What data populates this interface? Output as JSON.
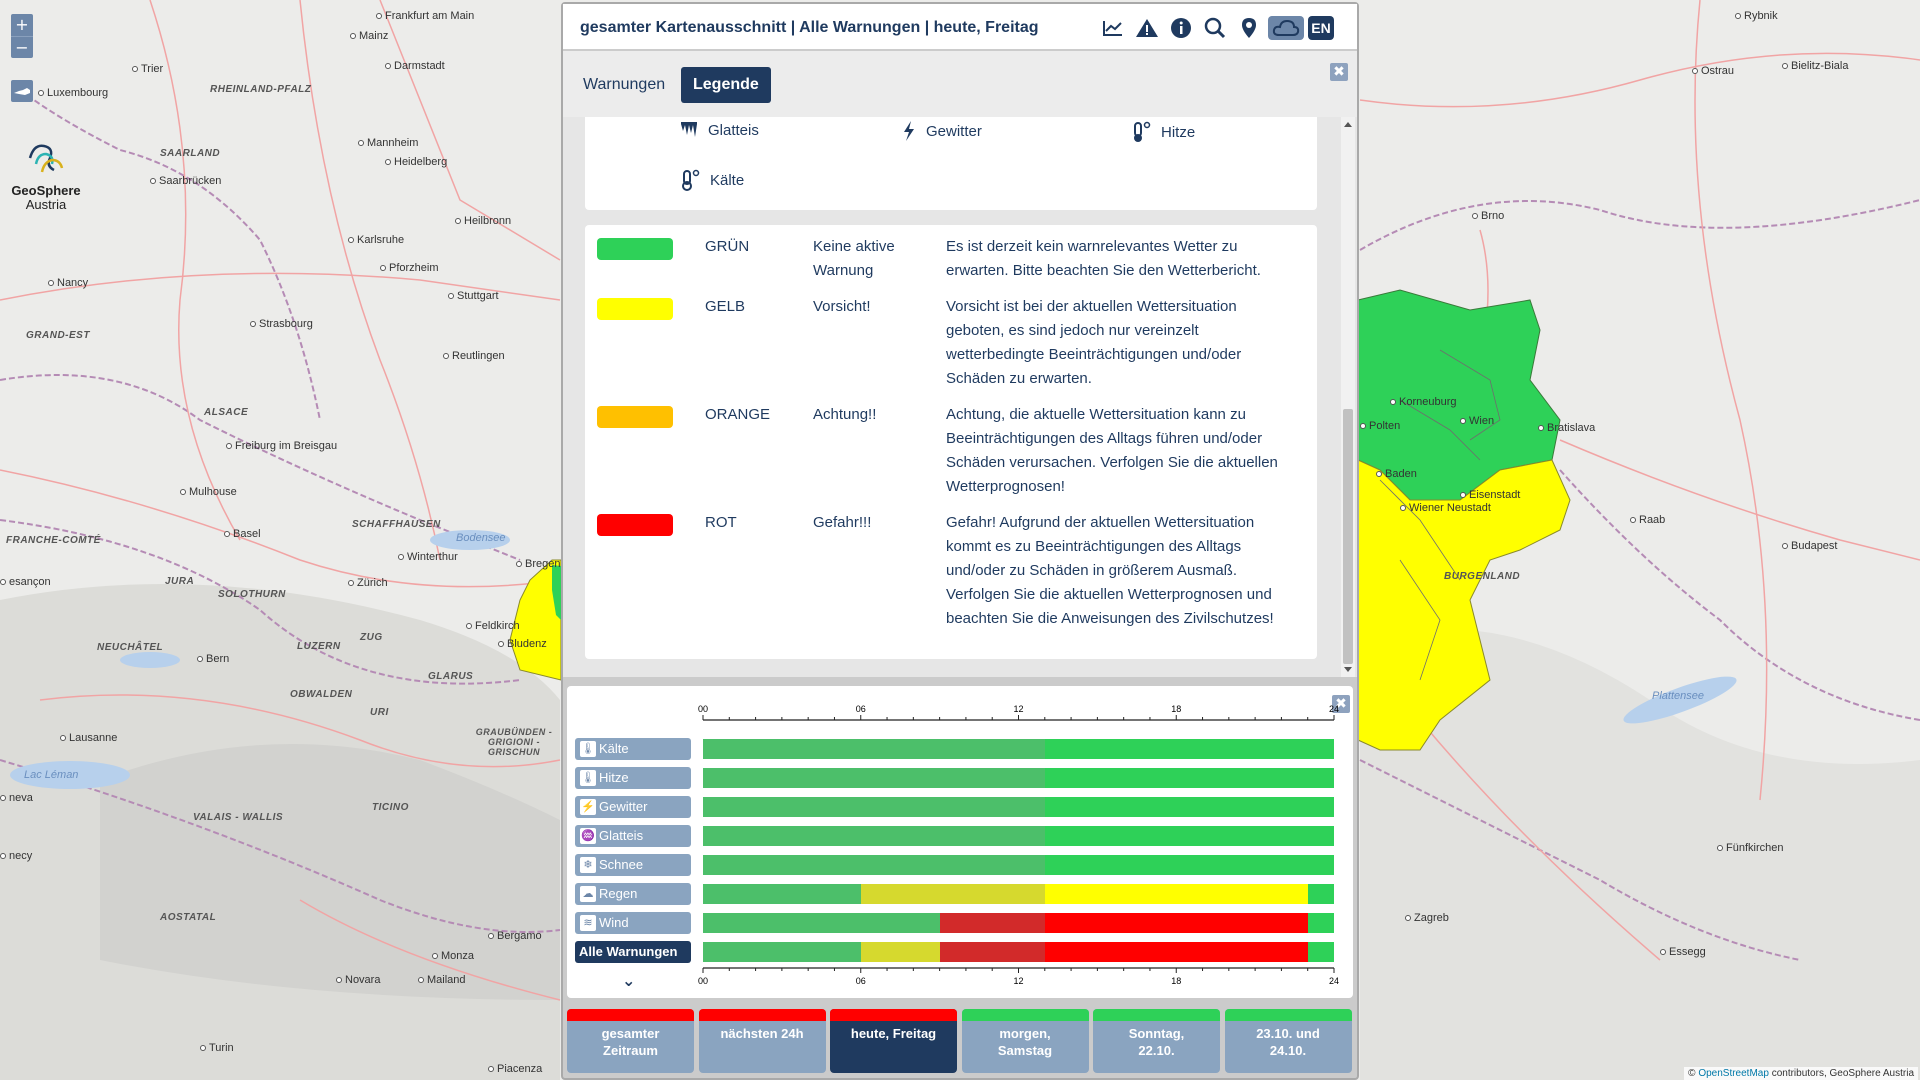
{
  "map": {
    "cities": [
      {
        "name": "Frankfurt am Main"
      },
      {
        "name": "Mainz"
      },
      {
        "name": "Darmstadt"
      },
      {
        "name": "Trier"
      },
      {
        "name": "Luxembourg"
      },
      {
        "name": "Mannheim"
      },
      {
        "name": "Heidelberg"
      },
      {
        "name": "Saarbrücken"
      },
      {
        "name": "Heilbronn"
      },
      {
        "name": "Karlsruhe"
      },
      {
        "name": "Pforzheim"
      },
      {
        "name": "Stuttgart"
      },
      {
        "name": "Nancy"
      },
      {
        "name": "Strasbourg"
      },
      {
        "name": "Reutlingen"
      },
      {
        "name": "Freiburg im Breisgau"
      },
      {
        "name": "Mulhouse"
      },
      {
        "name": "Basel"
      },
      {
        "name": "Winterthur"
      },
      {
        "name": "Zürich"
      },
      {
        "name": "Bern"
      },
      {
        "name": "Lausanne"
      },
      {
        "name": "Monza"
      },
      {
        "name": "Bergamo"
      },
      {
        "name": "Novara"
      },
      {
        "name": "Mailand"
      },
      {
        "name": "Turin"
      },
      {
        "name": "Piacenza"
      },
      {
        "name": "Rybnik"
      },
      {
        "name": "Ostrau"
      },
      {
        "name": "Bielitz-Biala"
      },
      {
        "name": "Brno"
      },
      {
        "name": "Korneuburg"
      },
      {
        "name": "Wien"
      },
      {
        "name": "Bratislava"
      },
      {
        "name": "Baden"
      },
      {
        "name": "Eisenstadt"
      },
      {
        "name": "Wiener Neustadt"
      },
      {
        "name": "Raab"
      },
      {
        "name": "Budapest"
      },
      {
        "name": "Fünfkirchen"
      },
      {
        "name": "Zagreb"
      },
      {
        "name": "Essegg"
      },
      {
        "name": "Bregenz"
      },
      {
        "name": "Feldkirch"
      },
      {
        "name": "Bludenz"
      },
      {
        "name": "Polten"
      },
      {
        "name": "esançon"
      },
      {
        "name": "neva"
      },
      {
        "name": "necy"
      }
    ],
    "regions": [
      "RHEINLAND-PFALZ",
      "SAARLAND",
      "GRAND-EST",
      "ALSACE",
      "FRANCHE-COMTÉ",
      "SCHAFFHAUSEN",
      "JURA",
      "SOLOTHURN",
      "NEUCHÂTEL",
      "LUZERN",
      "ZUG",
      "GLARUS",
      "OBWALDEN",
      "URI",
      "GRAUBÜNDEN - GRIGIONI - GRISCHUN",
      "VALAIS - WALLIS",
      "TICINO",
      "AOSTATAL",
      "BURGENLAND"
    ],
    "lakes": [
      "Bodensee",
      "Lac Léman",
      "Plattensee"
    ],
    "logo_line1": "GeoSphere",
    "logo_line2": "Austria",
    "zoom_in": "+",
    "zoom_out": "−",
    "attribution_prefix": "© ",
    "attribution_link": "OpenStreetMap",
    "attribution_suffix": " contributors, GeoSphere Austria"
  },
  "panel": {
    "title": "gesamter Kartenausschnitt | Alle Warnungen | heute, Freitag",
    "toolbar_icons": [
      "chart-icon",
      "warning-icon",
      "info-icon",
      "zoom-search-icon",
      "location-pin-icon",
      "cloud-icon",
      "language-icon"
    ],
    "language_label": "EN",
    "tabs": [
      {
        "label": "Warnungen",
        "active": false
      },
      {
        "label": "Legende",
        "active": true
      }
    ],
    "close_symbol": "✖",
    "warning_types": [
      {
        "label": "Glatteis",
        "icon": "icicle-icon"
      },
      {
        "label": "Gewitter",
        "icon": "lightning-icon"
      },
      {
        "label": "Hitze",
        "icon": "thermometer-hot-icon"
      },
      {
        "label": "Kälte",
        "icon": "thermometer-cold-icon"
      }
    ],
    "levels": [
      {
        "color": "#2ed158",
        "name": "GRÜN",
        "short": "Keine aktive Warnung",
        "desc": "Es ist derzeit kein warnrelevantes Wetter zu erwarten. Bitte beachten Sie den Wetterbericht."
      },
      {
        "color": "#ffff00",
        "name": "GELB",
        "short": "Vorsicht!",
        "desc": "Vorsicht ist bei der aktuellen Wettersituation geboten, es sind jedoch nur vereinzelt wetterbedingte Beeinträchtigungen und/oder Schäden zu erwarten."
      },
      {
        "color": "#ffc000",
        "name": "ORANGE",
        "short": "Achtung!!",
        "desc": "Achtung, die aktuelle Wettersituation kann zu Beeinträchtigungen des Alltags führen und/oder Schäden verursachen. Verfolgen Sie die aktuellen Wetterprognosen!"
      },
      {
        "color": "#ff0000",
        "name": "ROT",
        "short": "Gefahr!!!",
        "desc": "Gefahr! Aufgrund der aktuellen Wettersituation kommt es zu Beeinträchtigungen des Alltags und/oder zu Schäden in größerem Ausmaß. Verfolgen Sie die aktuellen Wetterprognosen und beachten Sie die Anweisungen des Zivilschutzes!"
      }
    ]
  },
  "timeline": {
    "tick_labels": [
      "00",
      "06",
      "12",
      "18",
      "24"
    ],
    "hours_total": 24,
    "colors": {
      "green": "#2ed158",
      "green_past": "#4cbf6a",
      "yellow": "#ffff00",
      "yellow_past": "#d6d92e",
      "red": "#ff0000",
      "red_past": "#d22a2a"
    },
    "now_hour": 13,
    "rows": [
      {
        "label": "Kälte",
        "icon": "thermometer-cold-icon",
        "segments": [
          {
            "from": 0,
            "to": 24,
            "level": "green"
          }
        ]
      },
      {
        "label": "Hitze",
        "icon": "thermometer-hot-icon",
        "segments": [
          {
            "from": 0,
            "to": 24,
            "level": "green"
          }
        ]
      },
      {
        "label": "Gewitter",
        "icon": "lightning-icon",
        "segments": [
          {
            "from": 0,
            "to": 24,
            "level": "green"
          }
        ]
      },
      {
        "label": "Glatteis",
        "icon": "icicle-icon",
        "segments": [
          {
            "from": 0,
            "to": 24,
            "level": "green"
          }
        ]
      },
      {
        "label": "Schnee",
        "icon": "snowflake-icon",
        "segments": [
          {
            "from": 0,
            "to": 24,
            "level": "green"
          }
        ]
      },
      {
        "label": "Regen",
        "icon": "rain-cloud-icon",
        "segments": [
          {
            "from": 0,
            "to": 6,
            "level": "green"
          },
          {
            "from": 6,
            "to": 23,
            "level": "yellow"
          },
          {
            "from": 23,
            "to": 24,
            "level": "green"
          }
        ]
      },
      {
        "label": "Wind",
        "icon": "wind-icon",
        "segments": [
          {
            "from": 0,
            "to": 9,
            "level": "green"
          },
          {
            "from": 9,
            "to": 23,
            "level": "red"
          },
          {
            "from": 23,
            "to": 24,
            "level": "green"
          }
        ]
      },
      {
        "label": "Alle Warnungen",
        "icon": "",
        "segments": [
          {
            "from": 0,
            "to": 6,
            "level": "green"
          },
          {
            "from": 6,
            "to": 9,
            "level": "yellow"
          },
          {
            "from": 9,
            "to": 23,
            "level": "red"
          },
          {
            "from": 23,
            "to": 24,
            "level": "green"
          }
        ]
      }
    ],
    "expand_symbol": "⌄"
  },
  "days": [
    {
      "label": "gesamter Zeitraum",
      "stripe": "#ff0000",
      "active": false
    },
    {
      "label": "nächsten 24h",
      "stripe": "#ff0000",
      "active": false
    },
    {
      "label": "heute, Freitag",
      "stripe": "#ff0000",
      "active": true
    },
    {
      "label": "morgen, Samstag",
      "stripe": "#2ed158",
      "active": false
    },
    {
      "label": "Sonntag, 22.10.",
      "stripe": "#2ed158",
      "active": false
    },
    {
      "label": "23.10. und 24.10.",
      "stripe": "#2ed158",
      "active": false
    }
  ]
}
